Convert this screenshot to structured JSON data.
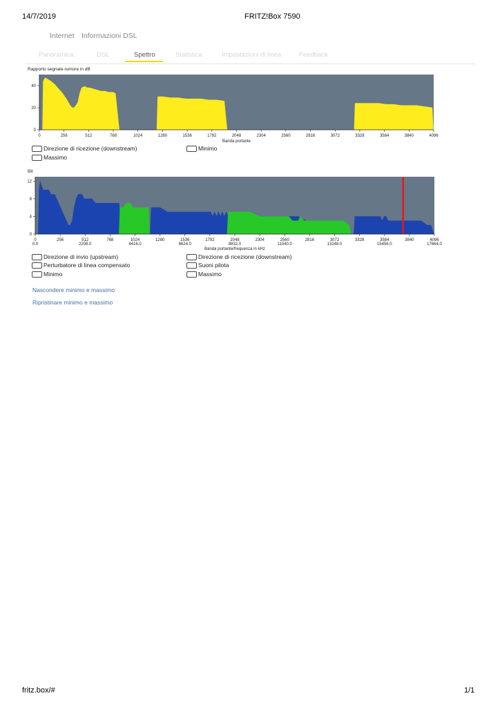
{
  "print_header": {
    "date": "14/7/2019",
    "title": "FRITZ!Box 7590"
  },
  "print_footer": {
    "url": "fritz.box/#",
    "page": "1/1"
  },
  "breadcrumb": {
    "item1": "Internet",
    "item2": "Informazioni DSL"
  },
  "tabs": [
    {
      "label": "Panoramica",
      "active": false
    },
    {
      "label": "DSL",
      "active": false
    },
    {
      "label": "Spettro",
      "active": true
    },
    {
      "label": "Statistica",
      "active": false
    },
    {
      "label": "Impostazioni di linea",
      "active": false
    },
    {
      "label": "Feedback",
      "active": false
    }
  ],
  "colors": {
    "plot_bg": "#667788",
    "snr": "#ffec1c",
    "upstream": "#28c828",
    "downstream": "#1c44b0",
    "pilot": "#e81818",
    "accent": "#f5d400"
  },
  "snr_legend": {
    "downstream": "Direzione di ricezione (downstream)",
    "minimum": "Minimo",
    "maximum": "Massimo"
  },
  "bits_legend": {
    "upstream": "Direzione di invio (upstream)",
    "downstream": "Direzione di ricezione (downstream)",
    "crosstalk": "Perturbatore di linea compensato",
    "pilot": "Suoni pilota",
    "minimum": "Minimo",
    "maximum": "Massimo"
  },
  "links": {
    "hide_minmax": "Nascondere minimo e massimo",
    "restore_minmax": "Ripristinare minimo e massimo"
  },
  "chart_data": [
    {
      "type": "area",
      "title": "Rapporto segnale-rumore in dB",
      "xlabel": "Banda portante",
      "ylabel": "",
      "xlim": [
        0,
        4096
      ],
      "ylim": [
        0,
        50
      ],
      "x_ticks": [
        "0",
        "256",
        "512",
        "768",
        "1024",
        "1280",
        "1536",
        "1792",
        "2048",
        "2304",
        "2560",
        "2816",
        "3072",
        "3328",
        "3584",
        "3840",
        "4096"
      ],
      "y_ticks": [
        "0",
        "20",
        "40"
      ],
      "series": [
        {
          "name": "Direzione di ricezione (downstream)",
          "color": "#ffec1c",
          "segments": [
            {
              "x": [
                33,
                40,
                60,
                80,
                120,
                160,
                200,
                240,
                280,
                300,
                320,
                340,
                360,
                380,
                400,
                420,
                440,
                460,
                480,
                500,
                520,
                560,
                600,
                640,
                680,
                720,
                760,
                790,
                830
              ],
              "y": [
                0,
                44,
                47,
                46,
                44,
                41,
                37,
                33,
                28,
                25,
                22,
                20,
                20,
                22,
                25,
                33,
                38,
                39,
                39,
                38,
                38,
                37,
                36,
                35,
                35,
                34,
                34,
                33,
                0
              ]
            },
            {
              "x": [
                1220,
                1230,
                1280,
                1360,
                1440,
                1520,
                1600,
                1680,
                1760,
                1840,
                1920,
                1950
              ],
              "y": [
                0,
                30,
                30,
                29,
                29,
                28,
                28,
                28,
                27,
                27,
                26,
                0
              ]
            },
            {
              "x": [
                3270,
                3280,
                3360,
                3440,
                3520,
                3600,
                3680,
                3760,
                3840,
                3920,
                4000,
                4080,
                4092
              ],
              "y": [
                0,
                24,
                24,
                24,
                24,
                23,
                23,
                22,
                22,
                22,
                21,
                20,
                0
              ]
            }
          ]
        }
      ]
    },
    {
      "type": "area",
      "title": "Bit",
      "xlabel": "Banda portante/frequenza in kHz",
      "ylabel": "",
      "xlim": [
        0,
        4096
      ],
      "ylim": [
        0,
        13
      ],
      "x_ticks": [
        "0",
        "256",
        "512",
        "768",
        "1024",
        "1280",
        "1536",
        "1792",
        "2048",
        "2304",
        "2560",
        "2816",
        "3072",
        "3328",
        "3584",
        "3840",
        "4096"
      ],
      "x_ticks_khz": [
        "0.0",
        "2208.0",
        "4416.0",
        "6624.0",
        "8832.0",
        "11040.0",
        "13248.0",
        "15456.0",
        "17664.0"
      ],
      "y_ticks": [
        "0",
        "4",
        "8",
        "12"
      ],
      "pilot_tone": 3775,
      "series": [
        {
          "name": "Direzione di ricezione (downstream)",
          "color": "#1c44b0",
          "segments": [
            {
              "x": [
                32,
                40,
                50,
                64,
                80,
                100,
                120,
                140,
                160,
                180,
                200,
                220,
                240,
                260,
                280,
                300,
                320,
                340,
                360,
                380,
                400,
                420,
                440,
                460,
                480,
                500,
                560,
                580,
                620,
                680,
                700,
                760,
                820,
                860,
                880
              ],
              "y": [
                0,
                10,
                12,
                11,
                10,
                10,
                10,
                10,
                9,
                9,
                9,
                8,
                7,
                6,
                5,
                4,
                3,
                2,
                2,
                3,
                6,
                8,
                9,
                9,
                9,
                8,
                8,
                8,
                7,
                7,
                7,
                7,
                7,
                7,
                0
              ]
            },
            {
              "x": [
                1180,
                1190,
                1240,
                1280,
                1360,
                1440,
                1540,
                1620,
                1700,
                1780,
                1800,
                1820,
                1840,
                1860,
                1880,
                1900,
                1920,
                1940,
                1960,
                1980,
                1990
              ],
              "y": [
                0,
                6,
                6,
                6,
                5,
                5,
                5,
                5,
                5,
                5,
                5,
                4,
                5,
                4,
                5,
                4,
                5,
                4,
                5,
                4,
                0
              ]
            },
            {
              "x": [
                2260,
                2270,
                2400,
                2560,
                2700,
                2780,
                2840,
                2880,
                2920
              ],
              "y": [
                0,
                4,
                4,
                4,
                4,
                3,
                3,
                3,
                0
              ]
            },
            {
              "x": [
                3270,
                3280,
                3320,
                3400,
                3480,
                3540,
                3560,
                3580,
                3600,
                3620,
                3680,
                3740,
                3800,
                3880,
                3960,
                4020,
                4060,
                4092
              ],
              "y": [
                0,
                4,
                4,
                4,
                4,
                4,
                3,
                4,
                4,
                3,
                3,
                3,
                3,
                3,
                3,
                2,
                2,
                0
              ]
            }
          ]
        },
        {
          "name": "Direzione di invio (upstream)",
          "color": "#28c828",
          "segments": [
            {
              "x": [
                860,
                870,
                900,
                940,
                980,
                1000,
                1020,
                1060,
                1100,
                1160,
                1175
              ],
              "y": [
                0,
                6,
                6,
                7,
                7,
                6,
                6,
                6,
                6,
                6,
                0
              ]
            },
            {
              "x": [
                1970,
                1980,
                2000,
                2040,
                2100,
                2200,
                2300,
                2380,
                2420,
                2460,
                2480,
                2500,
                2520,
                2560,
                2600,
                2640,
                2680,
                2700,
                2720,
                2760,
                2800,
                2840,
                2880,
                2920,
                2960,
                3040,
                3080,
                3120,
                3140,
                3160,
                3220,
                3240
              ],
              "y": [
                0,
                5,
                5,
                5,
                5,
                5,
                4,
                4,
                4,
                4,
                4,
                4,
                4,
                4,
                4,
                3,
                3,
                3,
                4,
                3,
                3,
                3,
                3,
                3,
                3,
                3,
                3,
                3,
                3,
                3,
                2,
                0
              ]
            }
          ]
        }
      ]
    }
  ]
}
